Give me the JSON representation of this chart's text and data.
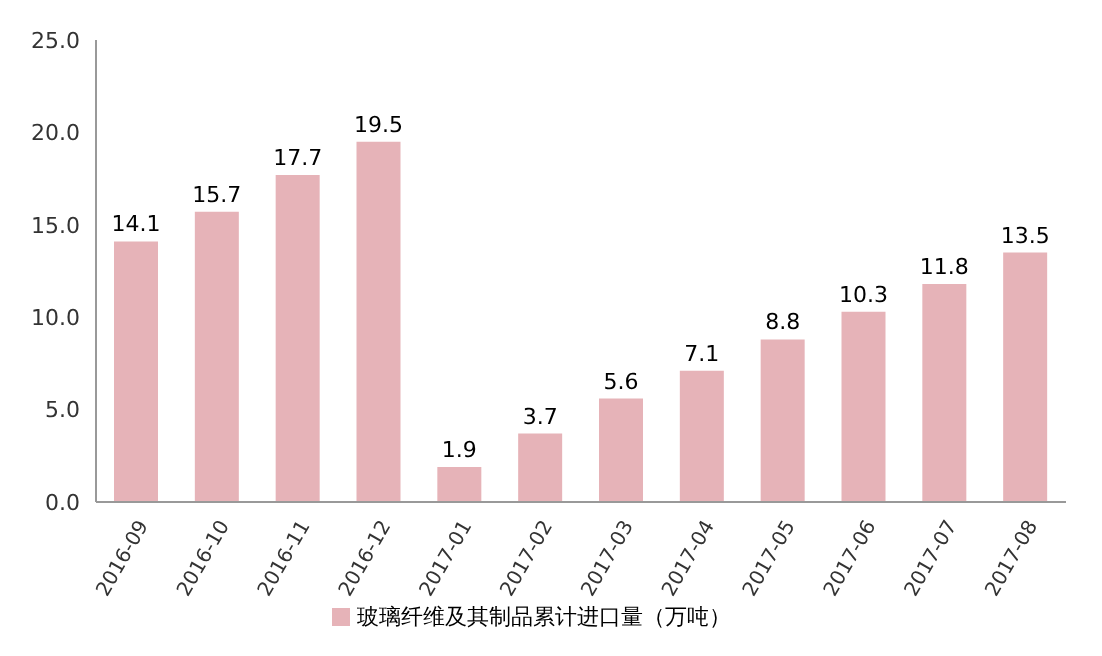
{
  "chart_data": {
    "type": "bar",
    "categories": [
      "2016-09",
      "2016-10",
      "2016-11",
      "2016-12",
      "2017-01",
      "2017-02",
      "2017-03",
      "2017-04",
      "2017-05",
      "2017-06",
      "2017-07",
      "2017-08"
    ],
    "series": [
      {
        "name": "玻璃纤维及其制品累计进口量（万吨）",
        "color": "#e6b3b8",
        "values": [
          14.1,
          15.7,
          17.7,
          19.5,
          1.9,
          3.7,
          5.6,
          7.1,
          8.8,
          10.3,
          11.8,
          13.5
        ]
      }
    ],
    "ylim": [
      0,
      25
    ],
    "yticks": [
      {
        "value": 0,
        "label": "0.0"
      },
      {
        "value": 5,
        "label": "5.0"
      },
      {
        "value": 10,
        "label": "10.0"
      },
      {
        "value": 15,
        "label": "15.0"
      },
      {
        "value": 20,
        "label": "20.0"
      },
      {
        "value": 25,
        "label": "25.0"
      }
    ],
    "data_labels": true,
    "legend": "bottom",
    "grid": false
  }
}
